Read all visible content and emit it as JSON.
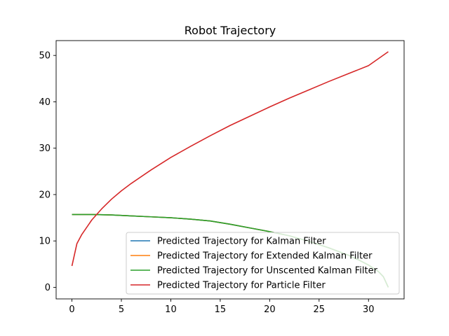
{
  "chart_data": {
    "type": "line",
    "title": "Robot Trajectory",
    "xlabel": "",
    "ylabel": "",
    "xlim": [
      -1.6,
      33.6
    ],
    "ylim": [
      -2.5,
      53.2
    ],
    "xticks": [
      0,
      5,
      10,
      15,
      20,
      25,
      30
    ],
    "yticks": [
      0,
      10,
      20,
      30,
      40,
      50
    ],
    "grid": false,
    "legend_position": "lower-right",
    "series": [
      {
        "name": "Predicted Trajectory for Kalman Filter",
        "color": "#1f77b4",
        "x": [
          0,
          2,
          4,
          6,
          8,
          10,
          12,
          14,
          16,
          18,
          20,
          22,
          24,
          26,
          28,
          29,
          30,
          31,
          31.5,
          32
        ],
        "y": [
          15.7,
          15.7,
          15.6,
          15.4,
          15.2,
          15.0,
          14.7,
          14.3,
          13.6,
          12.8,
          12.0,
          11.1,
          9.9,
          8.5,
          6.9,
          5.9,
          4.8,
          3.4,
          2.3,
          0.0
        ]
      },
      {
        "name": "Predicted Trajectory for Extended Kalman Filter",
        "color": "#ff7f0e",
        "x": [
          0,
          2,
          4,
          6,
          8,
          10,
          12,
          14,
          16,
          18,
          20,
          22,
          24,
          26,
          28,
          29,
          30,
          31,
          31.5,
          32
        ],
        "y": [
          15.7,
          15.7,
          15.6,
          15.4,
          15.2,
          15.0,
          14.7,
          14.3,
          13.6,
          12.8,
          12.0,
          11.1,
          9.9,
          8.5,
          6.9,
          5.9,
          4.8,
          3.4,
          2.3,
          0.0
        ]
      },
      {
        "name": "Predicted Trajectory for Unscented Kalman Filter",
        "color": "#2ca02c",
        "x": [
          0,
          2,
          4,
          6,
          8,
          10,
          12,
          14,
          16,
          18,
          20,
          22,
          24,
          26,
          28,
          29,
          30,
          31,
          31.5,
          32
        ],
        "y": [
          15.7,
          15.7,
          15.6,
          15.4,
          15.2,
          15.0,
          14.7,
          14.3,
          13.6,
          12.8,
          12.0,
          11.1,
          9.9,
          8.5,
          6.9,
          5.9,
          4.8,
          3.4,
          2.3,
          0.0
        ]
      },
      {
        "name": "Predicted Trajectory for Particle Filter",
        "color": "#d62728",
        "x": [
          0,
          0.5,
          1,
          2,
          3,
          4,
          5,
          6,
          8,
          10,
          12,
          14,
          16,
          18,
          20,
          22,
          24,
          26,
          28,
          30,
          32
        ],
        "y": [
          4.6,
          9.4,
          11.4,
          14.5,
          16.9,
          19.0,
          20.8,
          22.4,
          25.3,
          28.0,
          30.4,
          32.7,
          34.9,
          36.9,
          38.9,
          40.8,
          42.6,
          44.4,
          46.1,
          47.8,
          50.8
        ]
      }
    ]
  }
}
